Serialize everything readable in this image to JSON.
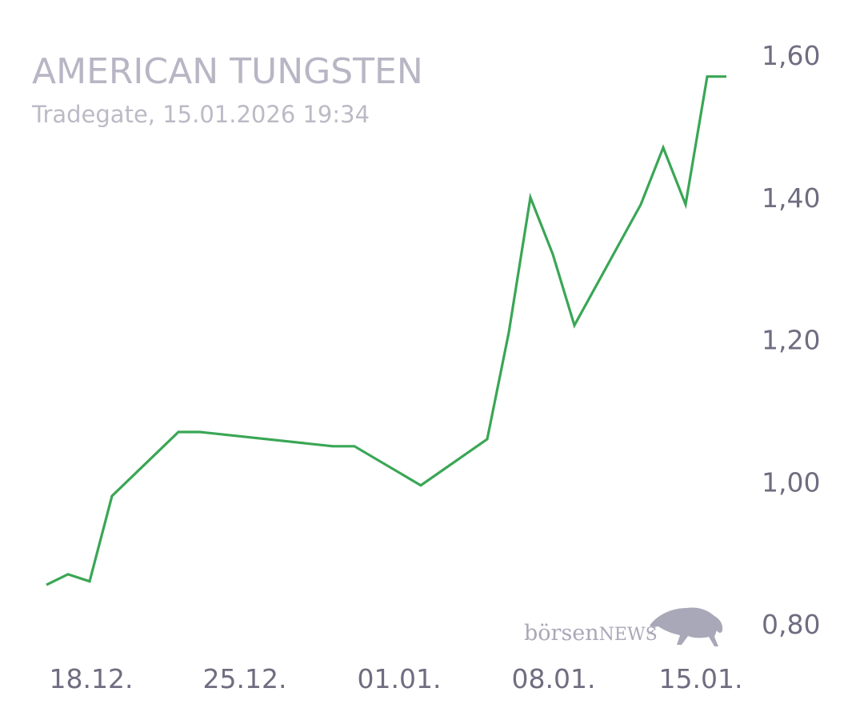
{
  "header": {
    "title": "AMERICAN TUNGSTEN",
    "subtitle": "Tradegate, 15.01.2026 19:34"
  },
  "logo": {
    "text_lower": "börsen",
    "text_upper": "NEWS",
    "icon": "bull-icon"
  },
  "colors": {
    "line": "#3aa655",
    "title": "#b8b6c4",
    "ticks": "#6f6d80"
  },
  "chart_data": {
    "type": "line",
    "title": "AMERICAN TUNGSTEN",
    "subtitle": "Tradegate, 15.01.2026 19:34",
    "xlabel": "",
    "ylabel": "",
    "ylim": [
      0.8,
      1.6
    ],
    "yticks": [
      0.8,
      1.0,
      1.2,
      1.4,
      1.6
    ],
    "ytick_labels": [
      "0,80",
      "1,00",
      "1,20",
      "1,40",
      "1,60"
    ],
    "xticks": [
      "18.12.",
      "25.12.",
      "01.01.",
      "08.01.",
      "15.01."
    ],
    "y_axis_position": "right",
    "grid": false,
    "legend": "none",
    "series": [
      {
        "x": [
          "16.12.",
          "17.12.",
          "18.12.",
          "19.12.",
          "22.12.",
          "23.12.",
          "29.12.",
          "30.12.",
          "02.01.",
          "05.01.",
          "06.01.",
          "07.01.",
          "08.01.",
          "09.01.",
          "12.01.",
          "13.01.",
          "14.01.",
          "15.01.",
          "15.01. 19:34"
        ],
        "values": [
          0.855,
          0.87,
          0.86,
          0.98,
          1.07,
          1.07,
          1.05,
          1.05,
          0.995,
          1.06,
          1.21,
          1.4,
          1.32,
          1.22,
          1.39,
          1.47,
          1.39,
          1.57,
          1.57
        ]
      }
    ]
  }
}
